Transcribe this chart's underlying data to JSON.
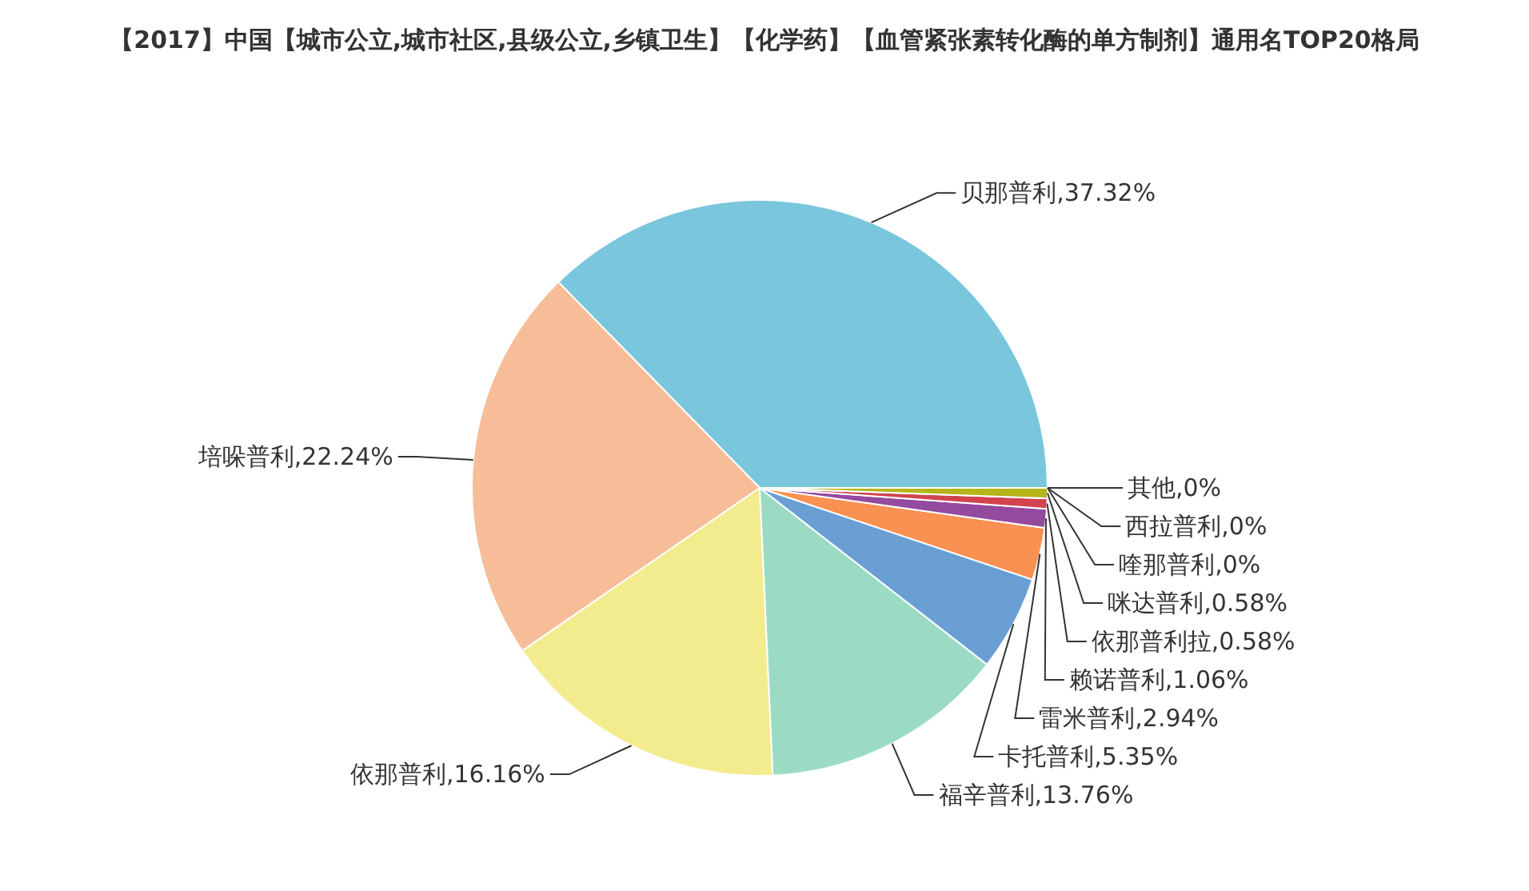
{
  "chart_data": {
    "type": "pie",
    "title": "【2017】中国【城市公立,城市社区,县级公立,乡镇卫生】【化学药】【血管紧张素转化酶的单方制剂】通用名TOP20格局",
    "categories": [
      "贝那普利",
      "培哚普利",
      "依那普利",
      "福辛普利",
      "卡托普利",
      "雷米普利",
      "赖诺普利",
      "依那普利拉",
      "咪达普利",
      "喹那普利",
      "西拉普利",
      "其他"
    ],
    "values": [
      37.32,
      22.24,
      16.16,
      13.76,
      5.35,
      2.94,
      1.06,
      0.58,
      0.58,
      0,
      0,
      0
    ],
    "colors": [
      "#7ac6dc",
      "#f6bd98",
      "#f2ec8f",
      "#9bdbc4",
      "#6a9fd4",
      "#f89152",
      "#944a9e",
      "#d0434f",
      "#b5b418",
      "#e6a0c4",
      "#8fbf6a",
      "#c0c0c0"
    ],
    "value_labels": [
      ",37.32%",
      ",22.24%",
      ",16.16%",
      ",13.76%",
      ",5.35%",
      ",2.94%",
      ",1.06%",
      ",0.58%",
      ",0.58%",
      ",0%",
      ",0%",
      ",0%"
    ]
  }
}
